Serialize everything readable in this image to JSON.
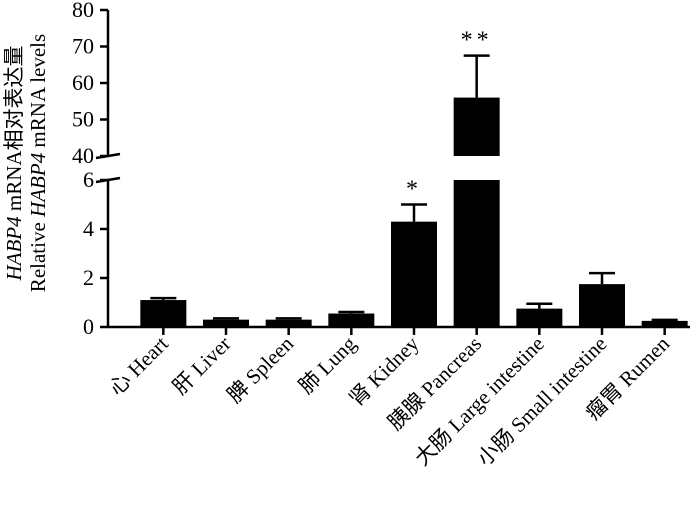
{
  "chart_data": {
    "type": "bar",
    "categories": [
      "心 Heart",
      "肝 Liver",
      "脾 Spleen",
      "肺 Lung",
      "肾 Kidney",
      "胰腺 Pancreas",
      "大肠 Large intestine",
      "小肠 Small intestine",
      "瘤胃 Rumen"
    ],
    "values": [
      1.1,
      0.3,
      0.3,
      0.55,
      4.3,
      56,
      0.75,
      1.75,
      0.25
    ],
    "errors": [
      0.08,
      0.05,
      0.05,
      0.06,
      0.7,
      11.5,
      0.2,
      0.45,
      0.04
    ],
    "significance": [
      "",
      "",
      "",
      "",
      "*",
      "**",
      "",
      "",
      ""
    ],
    "ylabel_line1_italic": "HABP4",
    "ylabel_line1_rest": " mRNA相对表达量",
    "ylabel_line2_prefix": "Relative ",
    "ylabel_line2_italic": "HABP4",
    "ylabel_line2_suffix": " mRNA levels",
    "y_lower": {
      "ylim": [
        0,
        6
      ],
      "ticks": [
        "0",
        "2",
        "4",
        "6"
      ]
    },
    "y_upper": {
      "ylim": [
        40,
        80
      ],
      "ticks": [
        "40",
        "50",
        "60",
        "70",
        "80"
      ]
    },
    "axis_break": true,
    "bar_color": "#000000"
  }
}
